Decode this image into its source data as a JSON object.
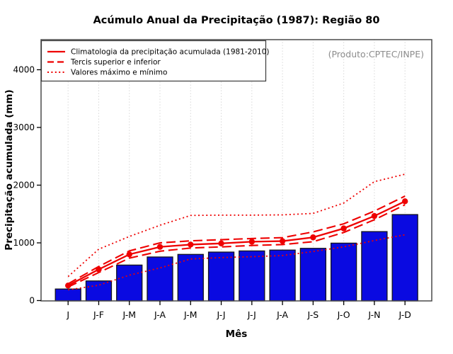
{
  "chart_data": {
    "type": "bar",
    "subtype": "bar-with-line-overlays",
    "title": "Acúmulo Anual da Precipitação (1987): Região 80",
    "xlabel": "Mês",
    "ylabel": "Precipitação acumulada (mm)",
    "annotation": "(Produto:CPTEC/INPE)",
    "categories": [
      "J",
      "J-F",
      "J-M",
      "J-A",
      "J-M",
      "J-J",
      "J-J",
      "J-A",
      "J-S",
      "J-O",
      "J-N",
      "J-D"
    ],
    "bars": {
      "id": "acumulo_1987",
      "values": [
        200,
        340,
        615,
        755,
        800,
        840,
        860,
        875,
        905,
        995,
        1195,
        1490
      ]
    },
    "series": [
      {
        "id": "climatologia",
        "style": "solid",
        "marker": true,
        "values": [
          260,
          540,
          800,
          930,
          970,
          990,
          1020,
          1030,
          1095,
          1250,
          1465,
          1720
        ]
      },
      {
        "id": "tercil_superior",
        "style": "dashed",
        "marker": false,
        "values": [
          290,
          590,
          860,
          1000,
          1035,
          1055,
          1075,
          1090,
          1190,
          1330,
          1550,
          1810
        ]
      },
      {
        "id": "tercil_inferior",
        "style": "dashed",
        "marker": false,
        "values": [
          235,
          485,
          735,
          855,
          910,
          930,
          955,
          970,
          1020,
          1180,
          1400,
          1660
        ]
      },
      {
        "id": "valor_maximo",
        "style": "dotted",
        "marker": false,
        "values": [
          415,
          890,
          1110,
          1305,
          1475,
          1480,
          1480,
          1485,
          1510,
          1690,
          2060,
          2190
        ]
      },
      {
        "id": "valor_minimo",
        "style": "dotted",
        "marker": false,
        "values": [
          185,
          265,
          440,
          565,
          720,
          745,
          760,
          780,
          850,
          930,
          1040,
          1140
        ]
      }
    ],
    "ylim": [
      0,
      4400
    ],
    "yticks": [
      0,
      1000,
      2000,
      3000,
      4000
    ],
    "grid": "vertical-dotted",
    "legend_position": "topleft",
    "legend": [
      {
        "style": "solid",
        "label": "Climatologia da precipitação acumulada (1981-2010)"
      },
      {
        "style": "dashed",
        "label": "Tercis superior e inferior"
      },
      {
        "style": "dotted",
        "label": "Valores máximo e mínimo"
      }
    ],
    "colors": {
      "bar": "#0a0ae1",
      "bar_border": "#14141e",
      "line": "#ee0000",
      "grid": "#d8d8d8",
      "frame": "#4a4a4a",
      "annotation": "#8c8c8c"
    }
  }
}
